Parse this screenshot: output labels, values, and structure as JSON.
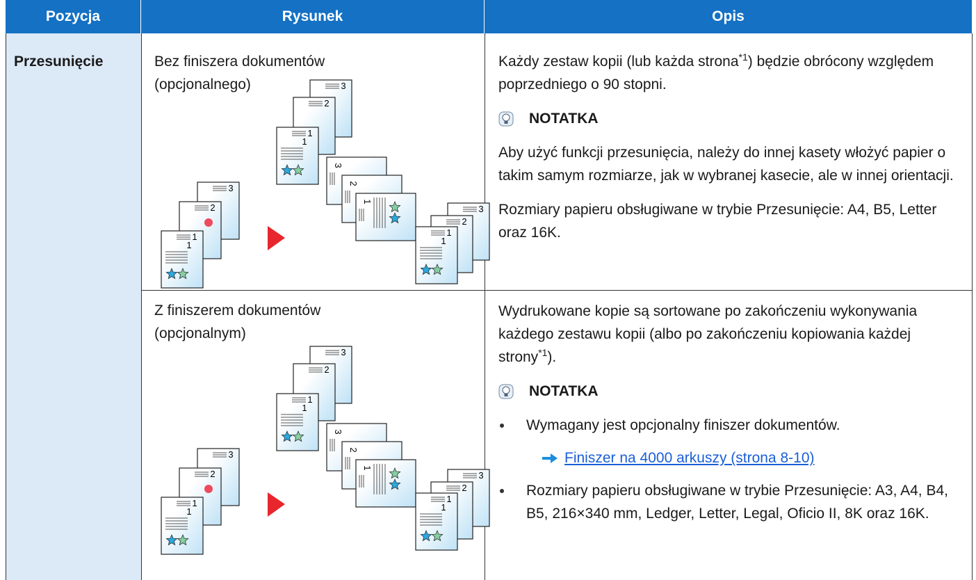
{
  "header": {
    "columns": [
      "Pozycja",
      "Rysunek",
      "Opis"
    ]
  },
  "figure_labels": [
    "1",
    "2",
    "3"
  ],
  "table": {
    "item": "Przesunięcie",
    "rows": [
      {
        "figure_caption": [
          "Bez finiszera dokumentów",
          "(opcjonalnego)"
        ],
        "description": {
          "text": [
            "Każdy zestaw kopii (lub każda strona",
            "*1",
            ") będzie obrócony względem poprzedniego o 90 stopni."
          ],
          "note_title": "NOTATKA",
          "note_paragraphs": [
            "Aby użyć funkcji przesunięcia, należy do innej kasety włożyć papier o takim samym rozmiarze, jak w wybranej kasecie, ale w innej orientacji.",
            "Rozmiary papieru obsługiwane w trybie Przesunięcie: A4, B5, Letter oraz 16K."
          ]
        }
      },
      {
        "figure_caption": [
          "Z finiszerem dokumentów",
          "(opcjonalnym)"
        ],
        "description": {
          "text": [
            "Wydrukowane kopie są sortowane po zakończeniu wykonywania każdego zestawu kopii (albo po zakończeniu kopiowania każdej strony",
            "*1",
            ")."
          ],
          "note_title": "NOTATKA",
          "note_bullets": [
            "Wymagany jest opcjonalny finiszer dokumentów.",
            "Rozmiary papieru obsługiwane w trybie Przesunięcie: A3, A4, B4, B5, 216×340 mm, Ledger, Letter, Legal, Oficio II, 8K oraz 16K."
          ],
          "link": "Finiszer na 4000 arkuszy (strona 8-10)"
        }
      }
    ]
  }
}
